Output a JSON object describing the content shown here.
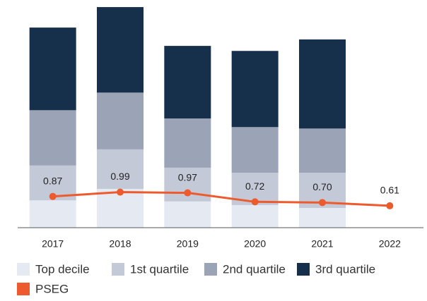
{
  "chart_data": {
    "type": "bar",
    "stacked": true,
    "categories": [
      "2017",
      "2018",
      "2019",
      "2020",
      "2021",
      "2022"
    ],
    "ylim": [
      0,
      6.2
    ],
    "series": [
      {
        "name": "Top decile",
        "color": "#e4e9f2",
        "values": [
          0.76,
          1.08,
          0.73,
          0.63,
          0.55,
          null
        ]
      },
      {
        "name": "1st quartile",
        "color": "#c4c9d7",
        "values": [
          0.97,
          1.1,
          0.94,
          0.9,
          0.98,
          null
        ]
      },
      {
        "name": "2nd quartile",
        "color": "#9ba3b7",
        "values": [
          1.54,
          1.58,
          1.37,
          1.27,
          1.23,
          null
        ]
      },
      {
        "name": "3rd quartile",
        "color": "#162f4a",
        "values": [
          2.3,
          2.38,
          2.02,
          2.12,
          2.48,
          null
        ]
      },
      {
        "name": "PSEG",
        "type": "line",
        "color": "#ec5a2d",
        "values": [
          0.87,
          0.99,
          0.97,
          0.72,
          0.7,
          0.61
        ],
        "value_labels": [
          "0.87",
          "0.99",
          "0.97",
          "0.72",
          "0.70",
          "0.61"
        ]
      }
    ]
  }
}
